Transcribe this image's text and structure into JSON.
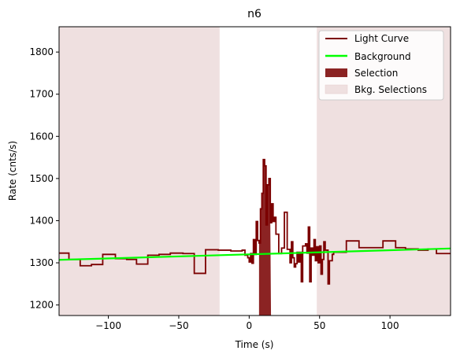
{
  "chart_data": {
    "type": "line",
    "title": "n6",
    "xlabel": "Time (s)",
    "ylabel": "Rate (cnts/s)",
    "xlim": [
      -135,
      143
    ],
    "ylim": [
      1175,
      1860
    ],
    "xticks": [
      -100,
      -50,
      0,
      50,
      100
    ],
    "yticks": [
      1200,
      1300,
      1400,
      1500,
      1600,
      1700,
      1800
    ],
    "legend_position": "top-right",
    "colors": {
      "light_curve": "#7b0000",
      "background": "#00ff00",
      "selection": "#8b2323",
      "bkg_selection": "#efe0e0"
    },
    "legend": [
      {
        "label": "Light Curve",
        "kind": "line",
        "color": "#7b0000"
      },
      {
        "label": "Background",
        "kind": "line",
        "color": "#00ff00"
      },
      {
        "label": "Selection",
        "kind": "patch",
        "color": "#8b2323"
      },
      {
        "label": "Bkg. Selections",
        "kind": "patch",
        "color": "#efe0e0"
      }
    ],
    "background_line": {
      "x": [
        -135,
        143
      ],
      "y": [
        1307,
        1334
      ]
    },
    "selection": {
      "x_start": 7,
      "x_end": 15.5
    },
    "bkg_selections": [
      {
        "x_start": -135,
        "x_end": -21
      },
      {
        "x_start": 48,
        "x_end": 143
      }
    ],
    "light_curve": [
      [
        -135,
        1323
      ],
      [
        -128,
        1323
      ],
      [
        -128,
        1308
      ],
      [
        -120,
        1308
      ],
      [
        -120,
        1293
      ],
      [
        -112,
        1293
      ],
      [
        -112,
        1296
      ],
      [
        -104,
        1296
      ],
      [
        -104,
        1320
      ],
      [
        -95,
        1320
      ],
      [
        -95,
        1310
      ],
      [
        -87,
        1310
      ],
      [
        -87,
        1308
      ],
      [
        -80,
        1308
      ],
      [
        -80,
        1297
      ],
      [
        -72,
        1297
      ],
      [
        -72,
        1318
      ],
      [
        -64,
        1318
      ],
      [
        -64,
        1320
      ],
      [
        -56,
        1320
      ],
      [
        -56,
        1323
      ],
      [
        -47,
        1323
      ],
      [
        -47,
        1322
      ],
      [
        -39,
        1322
      ],
      [
        -39,
        1275
      ],
      [
        -31,
        1275
      ],
      [
        -31,
        1331
      ],
      [
        -22,
        1331
      ],
      [
        -22,
        1330
      ],
      [
        -13,
        1330
      ],
      [
        -13,
        1328
      ],
      [
        -5,
        1328
      ],
      [
        -5,
        1330
      ],
      [
        -3,
        1330
      ],
      [
        -3,
        1318
      ],
      [
        -1,
        1318
      ],
      [
        -1,
        1312
      ],
      [
        0,
        1312
      ],
      [
        0,
        1302
      ],
      [
        1,
        1302
      ],
      [
        1,
        1322
      ],
      [
        2,
        1322
      ],
      [
        2,
        1299
      ],
      [
        3,
        1299
      ],
      [
        3,
        1355
      ],
      [
        4,
        1355
      ],
      [
        4,
        1320
      ],
      [
        5,
        1320
      ],
      [
        5,
        1398
      ],
      [
        6,
        1398
      ],
      [
        6,
        1353
      ],
      [
        7,
        1353
      ],
      [
        7,
        1347
      ],
      [
        8,
        1347
      ],
      [
        8,
        1428
      ],
      [
        9,
        1428
      ],
      [
        9,
        1465
      ],
      [
        10,
        1465
      ],
      [
        10,
        1545
      ],
      [
        11,
        1545
      ],
      [
        11,
        1530
      ],
      [
        12,
        1530
      ],
      [
        12,
        1390
      ],
      [
        13,
        1390
      ],
      [
        13,
        1485
      ],
      [
        14,
        1485
      ],
      [
        14,
        1500
      ],
      [
        15,
        1500
      ],
      [
        15,
        1395
      ],
      [
        16,
        1395
      ],
      [
        16,
        1440
      ],
      [
        17,
        1440
      ],
      [
        17,
        1398
      ],
      [
        18,
        1398
      ],
      [
        18,
        1408
      ],
      [
        19,
        1408
      ],
      [
        19,
        1368
      ],
      [
        21,
        1368
      ],
      [
        21,
        1322
      ],
      [
        23,
        1322
      ],
      [
        23,
        1335
      ],
      [
        25,
        1335
      ],
      [
        25,
        1420
      ],
      [
        27,
        1420
      ],
      [
        27,
        1332
      ],
      [
        29,
        1332
      ],
      [
        29,
        1300
      ],
      [
        30,
        1300
      ],
      [
        30,
        1350
      ],
      [
        31,
        1350
      ],
      [
        31,
        1312
      ],
      [
        32,
        1312
      ],
      [
        32,
        1290
      ],
      [
        33,
        1290
      ],
      [
        33,
        1298
      ],
      [
        34,
        1298
      ],
      [
        34,
        1325
      ],
      [
        35,
        1325
      ],
      [
        35,
        1302
      ],
      [
        36,
        1302
      ],
      [
        36,
        1325
      ],
      [
        37,
        1325
      ],
      [
        37,
        1255
      ],
      [
        38,
        1255
      ],
      [
        38,
        1340
      ],
      [
        40,
        1340
      ],
      [
        40,
        1345
      ],
      [
        41,
        1345
      ],
      [
        41,
        1323
      ],
      [
        42,
        1323
      ],
      [
        42,
        1385
      ],
      [
        43,
        1385
      ],
      [
        43,
        1255
      ],
      [
        44,
        1255
      ],
      [
        44,
        1335
      ],
      [
        45,
        1335
      ],
      [
        45,
        1318
      ],
      [
        46,
        1318
      ],
      [
        46,
        1355
      ],
      [
        47,
        1355
      ],
      [
        47,
        1305
      ],
      [
        48,
        1305
      ],
      [
        48,
        1338
      ],
      [
        49,
        1338
      ],
      [
        49,
        1300
      ],
      [
        50,
        1300
      ],
      [
        50,
        1340
      ],
      [
        51,
        1340
      ],
      [
        51,
        1273
      ],
      [
        52,
        1273
      ],
      [
        52,
        1308
      ],
      [
        53,
        1308
      ],
      [
        53,
        1350
      ],
      [
        54,
        1350
      ],
      [
        54,
        1330
      ],
      [
        56,
        1330
      ],
      [
        56,
        1250
      ],
      [
        57,
        1250
      ],
      [
        57,
        1305
      ],
      [
        59,
        1305
      ],
      [
        59,
        1320
      ],
      [
        60,
        1320
      ],
      [
        60,
        1325
      ],
      [
        69,
        1325
      ],
      [
        69,
        1352
      ],
      [
        78,
        1352
      ],
      [
        78,
        1336
      ],
      [
        95,
        1336
      ],
      [
        95,
        1352
      ],
      [
        104,
        1352
      ],
      [
        104,
        1336
      ],
      [
        111,
        1336
      ],
      [
        111,
        1333
      ],
      [
        120,
        1333
      ],
      [
        120,
        1330
      ],
      [
        127,
        1330
      ],
      [
        127,
        1333
      ],
      [
        133,
        1333
      ],
      [
        133,
        1322
      ],
      [
        143,
        1322
      ]
    ]
  }
}
